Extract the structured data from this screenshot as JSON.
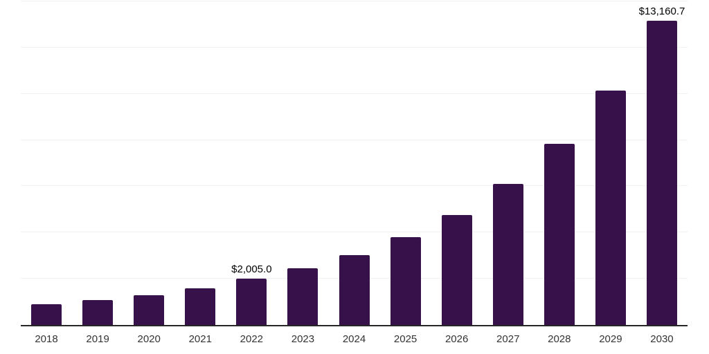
{
  "chart_data": {
    "type": "bar",
    "title": "",
    "xlabel": "",
    "ylabel": "",
    "categories": [
      "2018",
      "2019",
      "2020",
      "2021",
      "2022",
      "2023",
      "2024",
      "2025",
      "2026",
      "2027",
      "2028",
      "2029",
      "2030"
    ],
    "values": [
      910,
      1080,
      1300,
      1600,
      2005.0,
      2440,
      3010,
      3810,
      4760,
      6110,
      7830,
      10150,
      13160.7
    ],
    "value_labels": {
      "2022": "$2,005.0",
      "2030": "$13,160.7"
    },
    "ylim": [
      0,
      14000
    ],
    "gridline_step": 2000,
    "grid": "horizontal",
    "legend_position": "none",
    "y_axis_labels_visible": false,
    "colors": {
      "bar": "#36114A",
      "axis_line": "#262626",
      "gridline": "#F2F2F2",
      "value_label": "#000000",
      "tick_label": "#333333",
      "background": "#FFFFFF"
    }
  }
}
